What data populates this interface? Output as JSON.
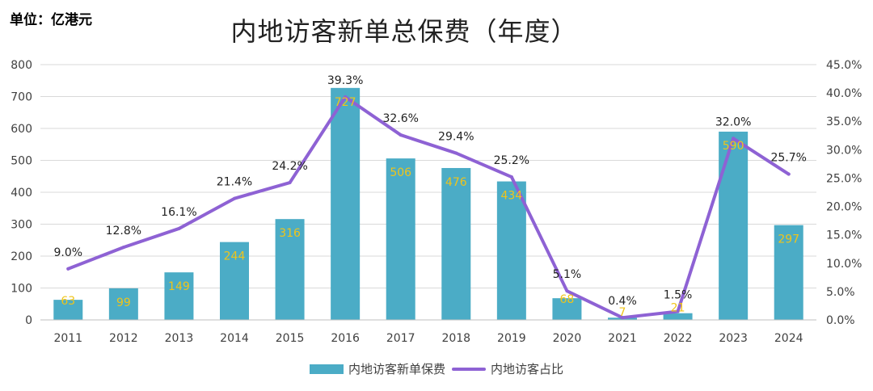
{
  "unit_label": "单位：亿港元",
  "chart_data": {
    "type": "bar",
    "title": "内地访客新单总保费（年度）",
    "categories": [
      "2011",
      "2012",
      "2013",
      "2014",
      "2015",
      "2016",
      "2017",
      "2018",
      "2019",
      "2020",
      "2021",
      "2022",
      "2023",
      "2024"
    ],
    "series": [
      {
        "name": "内地访客新单保费",
        "type": "bar",
        "axis": "left",
        "color": "#4bacc6",
        "values": [
          63,
          99,
          149,
          244,
          316,
          727,
          506,
          476,
          434,
          68,
          7,
          21,
          590,
          297
        ]
      },
      {
        "name": "内地访客占比",
        "type": "line",
        "axis": "right",
        "color": "#8e62d4",
        "values": [
          9.0,
          12.8,
          16.1,
          21.4,
          24.2,
          39.3,
          32.6,
          29.4,
          25.2,
          5.1,
          0.4,
          1.5,
          32.0,
          25.7
        ],
        "labels": [
          "9.0%",
          "12.8%",
          "16.1%",
          "21.4%",
          "24.2%",
          "39.3%",
          "32.6%",
          "29.4%",
          "25.2%",
          "5.1%",
          "0.4%",
          "1.5%",
          "32.0%",
          "25.7%"
        ]
      }
    ],
    "y_left": {
      "min": 0,
      "max": 800,
      "ticks": [
        "0",
        "100",
        "200",
        "300",
        "400",
        "500",
        "600",
        "700",
        "800"
      ]
    },
    "y_right": {
      "min": 0,
      "max": 45,
      "ticks": [
        "0.0%",
        "5.0%",
        "10.0%",
        "15.0%",
        "20.0%",
        "25.0%",
        "30.0%",
        "35.0%",
        "40.0%",
        "45.0%"
      ]
    },
    "grid": true,
    "legend_position": "bottom"
  }
}
